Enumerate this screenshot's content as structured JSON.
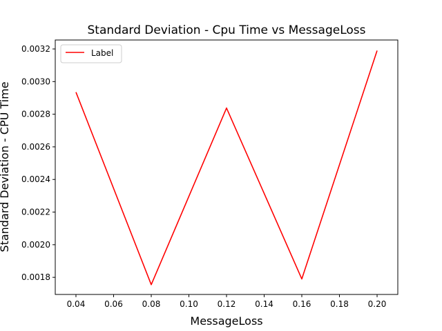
{
  "chart_data": {
    "type": "line",
    "title": "Standard Deviation - Cpu Time vs MessageLoss",
    "xlabel": "MessageLoss",
    "ylabel": "Standard Deviation - CPU Time",
    "xlim": [
      0.029,
      0.211
    ],
    "ylim": [
      0.001695,
      0.003255
    ],
    "xticks": [
      "0.04",
      "0.06",
      "0.08",
      "0.10",
      "0.12",
      "0.14",
      "0.16",
      "0.18",
      "0.20"
    ],
    "yticks": [
      "0.0018",
      "0.0020",
      "0.0022",
      "0.0024",
      "0.0026",
      "0.0028",
      "0.0030",
      "0.0032"
    ],
    "grid": false,
    "legend_position": "top-left",
    "series": [
      {
        "name": "Label",
        "color": "#ff0000",
        "x": [
          0.04,
          0.08,
          0.12,
          0.16,
          0.2
        ],
        "y": [
          0.002935,
          0.001755,
          0.002838,
          0.00179,
          0.00319
        ]
      }
    ]
  }
}
